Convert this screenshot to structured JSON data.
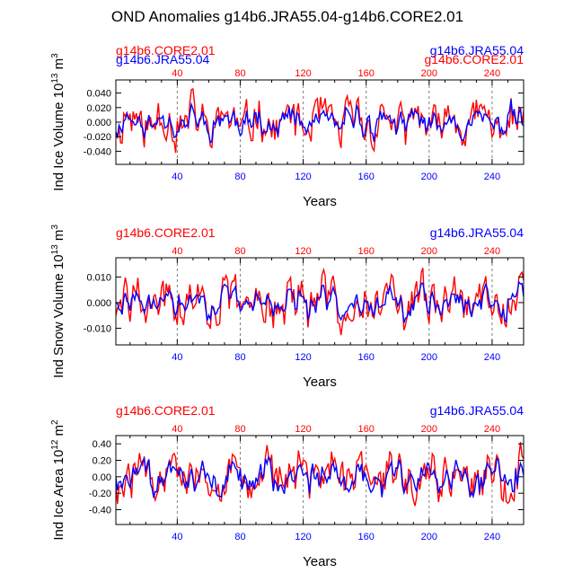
{
  "title": "OND Anomalies g14b6.JRA55.04-g14b6.CORE2.01",
  "colors": {
    "core": "#ff0000",
    "jra": "#0000ff",
    "axis": "#000000",
    "grid": "#808080"
  },
  "series_names": {
    "core": "g14b6.CORE2.01",
    "jra": "g14b6.JRA55.04"
  },
  "chart_data": [
    {
      "type": "line",
      "panel": "ice-volume",
      "ylabel": "Ind Ice Volume 10^13 m^3",
      "ylabel_base": "Ind Ice Volume 10",
      "ylabel_exp": "13",
      "ylabel_unit": " m",
      "ylabel_unit_exp": "3",
      "xlabel": "Years",
      "xlim": [
        1,
        260
      ],
      "ylim": [
        -0.058,
        0.058
      ],
      "yticks": [
        -0.04,
        -0.02,
        0.0,
        0.02,
        0.04
      ],
      "ytick_labels": [
        "-0.040",
        "-0.020",
        "0.000",
        "0.020",
        "0.040"
      ],
      "xticks": [
        40,
        80,
        120,
        160,
        200,
        240
      ],
      "xtick_labels": [
        "40",
        "80",
        "120",
        "160",
        "200",
        "240"
      ],
      "vlines": [
        40,
        80,
        120,
        160,
        200,
        240
      ],
      "amp": {
        "core": 0.029,
        "jra": 0.017
      },
      "seed": 11
    },
    {
      "type": "line",
      "panel": "snow-volume",
      "ylabel": "Ind Snow Volume 10^13 m^3",
      "ylabel_base": "Ind Snow Volume 10",
      "ylabel_exp": "13",
      "ylabel_unit": " m",
      "ylabel_unit_exp": "3",
      "xlabel": "Years",
      "xlim": [
        1,
        260
      ],
      "ylim": [
        -0.0165,
        0.0175
      ],
      "yticks": [
        -0.01,
        0.0,
        0.01
      ],
      "ytick_labels": [
        "-0.010",
        "0.000",
        "0.010"
      ],
      "xticks": [
        40,
        80,
        120,
        160,
        200,
        240
      ],
      "xtick_labels": [
        "40",
        "80",
        "120",
        "160",
        "200",
        "240"
      ],
      "vlines": [
        40,
        80,
        120,
        160,
        200,
        240
      ],
      "amp": {
        "core": 0.0085,
        "jra": 0.0045
      },
      "seed": 29
    },
    {
      "type": "line",
      "panel": "ice-area",
      "ylabel": "Ind Ice Area 10^12 m^2",
      "ylabel_base": "Ind Ice Area 10",
      "ylabel_exp": "12",
      "ylabel_unit": " m",
      "ylabel_unit_exp": "2",
      "xlabel": "Years",
      "xlim": [
        1,
        260
      ],
      "ylim": [
        -0.58,
        0.5
      ],
      "yticks": [
        -0.4,
        -0.2,
        0.0,
        0.2,
        0.4
      ],
      "ytick_labels": [
        "-0.40",
        "-0.20",
        "0.00",
        "0.20",
        "0.40"
      ],
      "xticks": [
        40,
        80,
        120,
        160,
        200,
        240
      ],
      "xtick_labels": [
        "40",
        "80",
        "120",
        "160",
        "200",
        "240"
      ],
      "vlines": [
        40,
        80,
        120,
        160,
        200,
        240
      ],
      "amp": {
        "core": 0.27,
        "jra": 0.2
      },
      "seed": 47
    }
  ]
}
